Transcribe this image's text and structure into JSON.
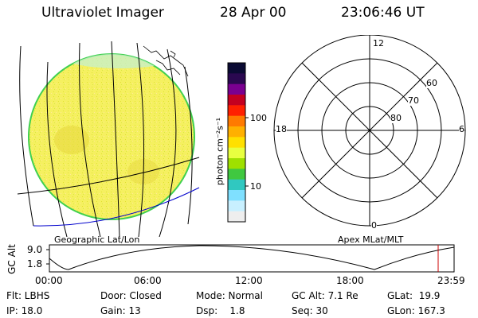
{
  "header": {
    "title": "Ultraviolet Imager",
    "date": "28 Apr 00",
    "time": "23:06:46 UT"
  },
  "left_panel": {
    "caption": "Geographic Lat/Lon"
  },
  "colorbar": {
    "unit_label": "photon cm⁻²s⁻¹",
    "tick_labels": [
      "100",
      "10"
    ],
    "colors": [
      "#0a0a33",
      "#2a0850",
      "#7a0090",
      "#c40020",
      "#ff2000",
      "#ff7a00",
      "#ffb000",
      "#ffe000",
      "#e8ff40",
      "#9fe000",
      "#40c840",
      "#30c8c0",
      "#7fe0ff",
      "#c8f0ff",
      "#eeeeee"
    ]
  },
  "right_panel": {
    "caption": "Apex MLat/MLT",
    "mlt_labels": {
      "top": "12",
      "left": "18",
      "right": "6",
      "bottom": "0"
    },
    "mlat_labels": [
      "60",
      "70",
      "80"
    ]
  },
  "altitude_strip": {
    "axis_label": "GC Alt",
    "y_ticks": [
      "9.0",
      "1.8"
    ],
    "x_ticks": [
      "00:00",
      "06:00",
      "12:00",
      "18:00",
      "23:59"
    ]
  },
  "footer": {
    "row1": [
      "Flt: LBHS",
      "Door: Closed",
      "Mode: Normal",
      "GC Alt: 7.1 Re",
      "GLat:  19.9"
    ],
    "row2": [
      "IP: 18.0",
      "Gain: 13",
      "Dsp:    1.8",
      "Seq: 30",
      "GLon: 167.3"
    ]
  },
  "colors": {
    "disk_fill": "#f5f060",
    "disk_edge": "#40d050",
    "graticule": "#000000",
    "coastline": "#0000cc",
    "marker": "#cc0000"
  }
}
